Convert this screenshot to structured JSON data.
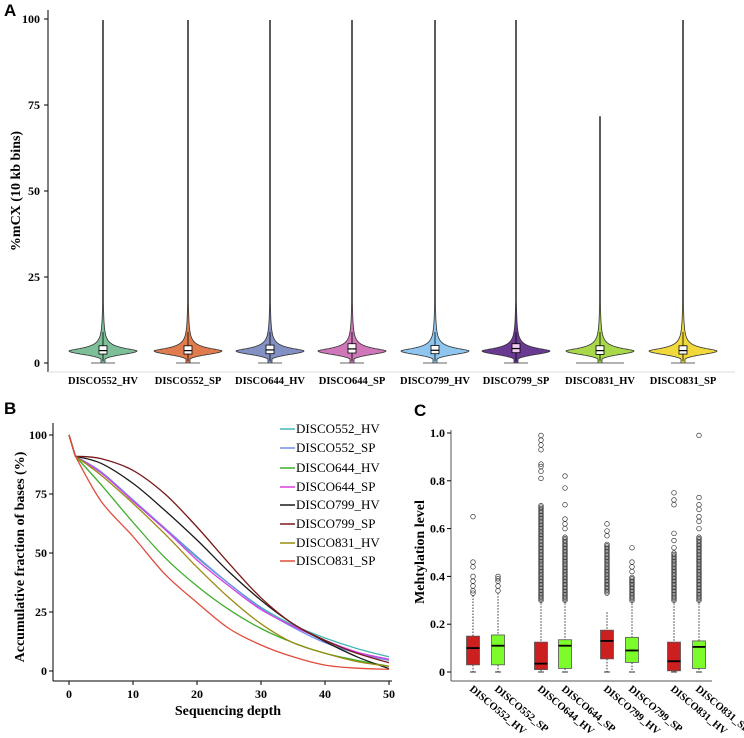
{
  "chart_data": [
    {
      "panel": "A",
      "type": "violin",
      "ylabel": "%mCX (10 kb bins)",
      "ylim": [
        0,
        100
      ],
      "yticks": [
        "0",
        "25",
        "50",
        "75",
        "100"
      ],
      "categories": [
        "DISCO552_HV",
        "DISCO552_SP",
        "DISCO644_HV",
        "DISCO644_SP",
        "DISCO799_HV",
        "DISCO799_SP",
        "DISCO831_HV",
        "DISCO831_SP"
      ],
      "colors": [
        "#7dbf98",
        "#e07b4e",
        "#8290c4",
        "#cf77b8",
        "#8ec6ef",
        "#6a3a93",
        "#a8d84a",
        "#f1d93b"
      ],
      "max": [
        100,
        100,
        100,
        100,
        100,
        100,
        72,
        100
      ],
      "q1": [
        2.6,
        2.6,
        2.7,
        2.9,
        2.7,
        3.0,
        2.5,
        2.6
      ],
      "median": [
        3.6,
        3.6,
        3.8,
        4.1,
        3.7,
        4.2,
        3.6,
        3.6
      ],
      "q3": [
        5.0,
        5.0,
        5.2,
        5.6,
        5.1,
        5.6,
        5.0,
        5.0
      ]
    },
    {
      "panel": "B",
      "type": "line",
      "xlabel": "Sequencing depth",
      "ylabel": "Accumulative fraction of bases (%)",
      "xlim": [
        0,
        50
      ],
      "ylim": [
        0,
        100
      ],
      "xticks": [
        "0",
        "10",
        "20",
        "30",
        "40",
        "50"
      ],
      "yticks": [
        "0",
        "25",
        "50",
        "75",
        "100"
      ],
      "legend": "top-right",
      "x": [
        0,
        1,
        5,
        10,
        15,
        20,
        25,
        30,
        35,
        40,
        45,
        50
      ],
      "series": [
        {
          "name": "DISCO552_HV",
          "color": "#45b5b5",
          "values": [
            100,
            91,
            84,
            72,
            60,
            48,
            37,
            27,
            19.5,
            14,
            9.5,
            6
          ]
        },
        {
          "name": "DISCO552_SP",
          "color": "#6f8ff0",
          "values": [
            100,
            91,
            84.5,
            72.5,
            60.5,
            48.5,
            37,
            26.5,
            18.5,
            12,
            7.5,
            4.5
          ]
        },
        {
          "name": "DISCO644_HV",
          "color": "#3fae2c",
          "values": [
            100,
            91,
            79,
            63,
            48,
            36,
            26,
            18,
            12,
            7.5,
            4.5,
            2
          ]
        },
        {
          "name": "DISCO644_SP",
          "color": "#d63fe0",
          "values": [
            100,
            91,
            84,
            72,
            60,
            47,
            36,
            26,
            19,
            13,
            8,
            5
          ]
        },
        {
          "name": "DISCO799_HV",
          "color": "#1a1a1a",
          "values": [
            100,
            91,
            88,
            79.5,
            68,
            55.5,
            42,
            30,
            20,
            12.5,
            6,
            1
          ]
        },
        {
          "name": "DISCO799_SP",
          "color": "#7a1a1a",
          "values": [
            100,
            91,
            90,
            85,
            75,
            61,
            45.6,
            31,
            20,
            13,
            7.5,
            3.5
          ]
        },
        {
          "name": "DISCO831_HV",
          "color": "#9a8a12",
          "values": [
            100,
            91,
            83,
            71,
            58,
            44,
            31,
            20,
            12,
            7.5,
            4,
            2
          ]
        },
        {
          "name": "DISCO831_SP",
          "color": "#e04c3c",
          "values": [
            100,
            91,
            72,
            57,
            41,
            29,
            18,
            11,
            6,
            2.5,
            1.2,
            0.7
          ]
        }
      ]
    },
    {
      "panel": "C",
      "type": "box",
      "ylabel": "Mehtylation level",
      "ylim": [
        0,
        1.0
      ],
      "yticks": [
        "0",
        "0.2",
        "0.4",
        "0.6",
        "0.8",
        "1.0"
      ],
      "categories": [
        "DISCO552_HV",
        "DISCO552_SP",
        "DISCO644_HV",
        "DISCO644_SP",
        "DISCO799_HV",
        "DISCO799_SP",
        "DISCO831_HV",
        "DISCO831_SP"
      ],
      "colors": {
        "HV": "#cc1f1f",
        "SP": "#7cfc2a"
      },
      "boxes": [
        {
          "group": "HV",
          "low": 0,
          "q1": 0.03,
          "median": 0.1,
          "q3": 0.15,
          "high": 0.32,
          "dense": null,
          "outliers": [
            0.33,
            0.34,
            0.36,
            0.38,
            0.4,
            0.44,
            0.46,
            0.65
          ]
        },
        {
          "group": "SP",
          "low": 0,
          "q1": 0.03,
          "median": 0.11,
          "q3": 0.155,
          "high": 0.33,
          "dense": null,
          "outliers": [
            0.34,
            0.36,
            0.38,
            0.39,
            0.4
          ]
        },
        {
          "group": "HV",
          "low": 0,
          "q1": 0.01,
          "median": 0.035,
          "q3": 0.125,
          "high": 0.3,
          "dense": [
            0.3,
            0.7
          ],
          "outliers": [
            0.81,
            0.84,
            0.86,
            0.87,
            0.93,
            0.95,
            0.97,
            0.99
          ]
        },
        {
          "group": "SP",
          "low": 0,
          "q1": 0.015,
          "median": 0.11,
          "q3": 0.135,
          "high": 0.3,
          "dense": [
            0.3,
            0.57
          ],
          "outliers": [
            0.6,
            0.62,
            0.64,
            0.7,
            0.77,
            0.82
          ]
        },
        {
          "group": "HV",
          "low": 0,
          "q1": 0.055,
          "median": 0.13,
          "q3": 0.175,
          "high": 0.25,
          "dense": [
            0.33,
            0.54
          ],
          "outliers": [
            0.57,
            0.59,
            0.62
          ]
        },
        {
          "group": "SP",
          "low": 0,
          "q1": 0.04,
          "median": 0.09,
          "q3": 0.145,
          "high": 0.3,
          "dense": [
            0.3,
            0.4
          ],
          "outliers": [
            0.42,
            0.44,
            0.46,
            0.52
          ]
        },
        {
          "group": "HV",
          "low": 0,
          "q1": 0.005,
          "median": 0.045,
          "q3": 0.125,
          "high": 0.3,
          "dense": [
            0.3,
            0.5
          ],
          "outliers": [
            0.52,
            0.55,
            0.58,
            0.7,
            0.72,
            0.75
          ]
        },
        {
          "group": "SP",
          "low": 0,
          "q1": 0.015,
          "median": 0.105,
          "q3": 0.13,
          "high": 0.3,
          "dense": [
            0.3,
            0.57
          ],
          "outliers": [
            0.6,
            0.63,
            0.65,
            0.68,
            0.7,
            0.73,
            0.99
          ]
        }
      ]
    }
  ],
  "panel_labels": {
    "a": "A",
    "b": "B",
    "c": "C"
  }
}
